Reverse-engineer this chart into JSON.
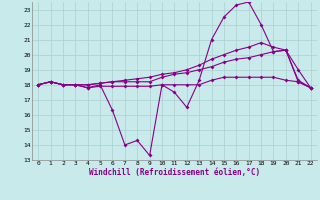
{
  "xlabel": "Windchill (Refroidissement éolien,°C)",
  "x": [
    0,
    1,
    2,
    3,
    4,
    5,
    6,
    7,
    8,
    9,
    10,
    11,
    12,
    13,
    14,
    15,
    16,
    17,
    18,
    19,
    20,
    21,
    22
  ],
  "line1": [
    18.0,
    18.2,
    18.0,
    18.0,
    17.8,
    18.0,
    16.3,
    14.0,
    14.3,
    13.3,
    18.0,
    17.5,
    16.5,
    18.3,
    21.0,
    22.5,
    23.3,
    23.5,
    22.0,
    20.2,
    20.3,
    18.2,
    17.8
  ],
  "line2": [
    18.0,
    18.2,
    18.0,
    18.0,
    17.8,
    17.9,
    17.9,
    17.9,
    17.9,
    17.9,
    18.0,
    18.0,
    18.0,
    18.0,
    18.3,
    18.5,
    18.5,
    18.5,
    18.5,
    18.5,
    18.3,
    18.2,
    17.8
  ],
  "line3": [
    18.0,
    18.2,
    18.0,
    18.0,
    18.0,
    18.1,
    18.2,
    18.2,
    18.2,
    18.2,
    18.5,
    18.7,
    18.8,
    19.0,
    19.2,
    19.5,
    19.7,
    19.8,
    20.0,
    20.2,
    20.3,
    19.0,
    17.8
  ],
  "line4": [
    18.0,
    18.2,
    18.0,
    18.0,
    18.0,
    18.1,
    18.2,
    18.3,
    18.4,
    18.5,
    18.7,
    18.8,
    19.0,
    19.3,
    19.7,
    20.0,
    20.3,
    20.5,
    20.8,
    20.5,
    20.3,
    18.3,
    17.8
  ],
  "line_color": "#880088",
  "bg_color": "#c8eaea",
  "grid_color": "#aacfcf",
  "ylim": [
    13,
    23.5
  ],
  "yticks": [
    13,
    14,
    15,
    16,
    17,
    18,
    19,
    20,
    21,
    22,
    23
  ],
  "xticks": [
    0,
    1,
    2,
    3,
    4,
    5,
    6,
    7,
    8,
    9,
    10,
    11,
    12,
    13,
    14,
    15,
    16,
    17,
    18,
    19,
    20,
    21,
    22
  ]
}
